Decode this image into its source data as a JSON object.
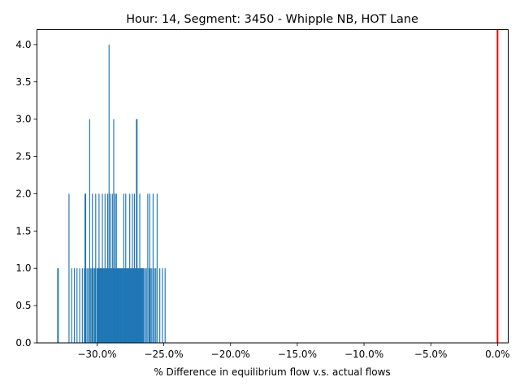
{
  "chart_data": {
    "type": "bar",
    "title": "Hour: 14, Segment: 3450 - Whipple NB, HOT Lane",
    "xlabel": "% Difference in equilibrium flow v.s. actual flows",
    "ylabel": "",
    "xlim": [
      -34.5,
      0.8
    ],
    "ylim": [
      0,
      4.2
    ],
    "x_ticks": [
      -30,
      -25,
      -20,
      -15,
      -10,
      -5,
      0
    ],
    "x_tick_labels": [
      "−30.0%",
      "−25.0%",
      "−20.0%",
      "−15.0%",
      "−10.0%",
      "−5.0%",
      "0.0%"
    ],
    "y_ticks": [
      0,
      0.5,
      1,
      1.5,
      2,
      2.5,
      3,
      3.5,
      4
    ],
    "y_tick_labels": [
      "0.0",
      "0.5",
      "1.0",
      "1.5",
      "2.0",
      "2.5",
      "3.0",
      "3.5",
      "4.0"
    ],
    "bar_color": "#1f77b4",
    "bar_width": 0.07,
    "reference_line": {
      "x": 0,
      "color": "#ff0000"
    },
    "grid": false,
    "x": [
      -32.95,
      -32.9,
      -32.1,
      -31.9,
      -31.7,
      -31.5,
      -31.3,
      -31.1,
      -30.95,
      -30.9,
      -30.85,
      -30.75,
      -30.65,
      -30.55,
      -30.5,
      -30.4,
      -30.35,
      -30.3,
      -30.2,
      -30.15,
      -30.1,
      -30.0,
      -29.95,
      -29.9,
      -29.85,
      -29.8,
      -29.75,
      -29.7,
      -29.65,
      -29.6,
      -29.55,
      -29.5,
      -29.45,
      -29.4,
      -29.35,
      -29.3,
      -29.25,
      -29.2,
      -29.15,
      -29.1,
      -29.05,
      -29.0,
      -28.95,
      -28.9,
      -28.85,
      -28.8,
      -28.75,
      -28.7,
      -28.65,
      -28.6,
      -28.55,
      -28.5,
      -28.45,
      -28.4,
      -28.35,
      -28.3,
      -28.25,
      -28.2,
      -28.15,
      -28.1,
      -28.05,
      -28.0,
      -27.95,
      -27.9,
      -27.85,
      -27.8,
      -27.75,
      -27.7,
      -27.65,
      -27.6,
      -27.55,
      -27.5,
      -27.45,
      -27.4,
      -27.35,
      -27.3,
      -27.25,
      -27.2,
      -27.15,
      -27.1,
      -27.05,
      -27.0,
      -26.95,
      -26.9,
      -26.85,
      -26.8,
      -26.75,
      -26.7,
      -26.65,
      -26.6,
      -26.55,
      -26.5,
      -26.4,
      -26.3,
      -26.2,
      -26.1,
      -26.05,
      -26.0,
      -25.9,
      -25.8,
      -25.7,
      -25.6,
      -25.5,
      -25.3,
      -25.1,
      -24.9
    ],
    "values": [
      1,
      1,
      2,
      1,
      1,
      1,
      1,
      1,
      1,
      2,
      2,
      1,
      1,
      3,
      1,
      1,
      2,
      1,
      1,
      1,
      2,
      1,
      1,
      1,
      2,
      1,
      1,
      1,
      1,
      2,
      1,
      1,
      1,
      2,
      1,
      1,
      1,
      2,
      1,
      4,
      1,
      2,
      1,
      1,
      2,
      1,
      3,
      1,
      2,
      1,
      2,
      1,
      1,
      1,
      1,
      1,
      1,
      1,
      1,
      1,
      1,
      2,
      1,
      1,
      2,
      1,
      1,
      1,
      1,
      1,
      2,
      1,
      1,
      1,
      2,
      1,
      1,
      2,
      1,
      1,
      3,
      3,
      1,
      1,
      1,
      2,
      1,
      1,
      1,
      1,
      1,
      1,
      1,
      1,
      2,
      1,
      2,
      1,
      1,
      2,
      1,
      1,
      2,
      1,
      1,
      1
    ]
  }
}
